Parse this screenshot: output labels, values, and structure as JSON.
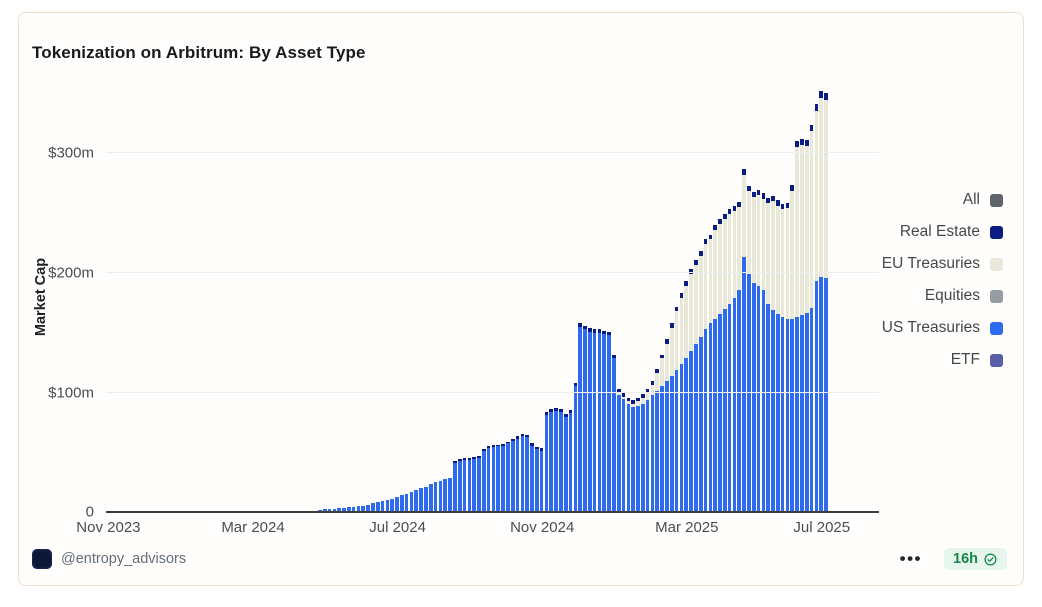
{
  "header": {
    "title": "Tokenization on Arbitrum: By Asset Type"
  },
  "footer": {
    "handle": "@entropy_advisors",
    "more_icon": "•••",
    "time_badge": "16h"
  },
  "chart_data": {
    "type": "bar",
    "stacked": true,
    "title": "Tokenization on Arbitrum: By Asset Type",
    "y_axis_title": "Market Cap",
    "unit": "$m (market cap)",
    "ylim": [
      0,
      366
    ],
    "grid": "horizontal",
    "legend_position": "right",
    "x_range": [
      "Nov 2023",
      "Jul 2025"
    ],
    "x_ticks": [
      {
        "label": "Nov 2023",
        "index": 0
      },
      {
        "label": "Mar 2024",
        "index": 30
      },
      {
        "label": "Jul 2024",
        "index": 60
      },
      {
        "label": "Nov 2024",
        "index": 90
      },
      {
        "label": "Mar 2025",
        "index": 120
      },
      {
        "label": "Jul 2025",
        "index": 148
      }
    ],
    "y_ticks": [
      {
        "label": "0",
        "value": 0
      },
      {
        "label": "$100m",
        "value": 100
      },
      {
        "label": "$200m",
        "value": 200
      },
      {
        "label": "$300m",
        "value": 300
      }
    ],
    "legend": [
      {
        "label": "All",
        "color": "#60646b"
      },
      {
        "label": "Real Estate",
        "color": "#0a1c83"
      },
      {
        "label": "EU Treasuries",
        "color": "#e9e9db"
      },
      {
        "label": "Equities",
        "color": "#979ca3"
      },
      {
        "label": "US Treasuries",
        "color": "#2f6bee"
      },
      {
        "label": "ETF",
        "color": "#5960a8"
      }
    ],
    "series": [
      {
        "name": "US Treasuries",
        "color": "#2f6bee",
        "values": [
          0,
          0,
          0,
          0,
          0,
          0,
          0,
          0,
          0,
          0,
          0,
          0,
          0,
          0,
          0,
          0,
          0,
          0,
          0,
          0,
          0,
          0,
          0,
          0,
          0,
          0,
          0,
          0,
          0,
          0,
          0,
          0,
          0,
          0,
          0,
          0,
          0,
          0,
          0,
          0,
          0,
          1,
          1.5,
          2,
          2.5,
          3,
          3,
          3.5,
          4,
          4.5,
          5,
          5,
          5.5,
          6,
          7,
          8,
          9,
          10,
          11,
          12,
          13.5,
          15,
          16,
          17.5,
          19,
          20.5,
          22,
          24,
          26,
          27,
          28,
          29,
          42,
          43.5,
          44,
          44.5,
          45,
          46,
          52,
          54,
          55,
          55.5,
          56,
          58,
          60,
          62,
          64,
          63,
          56,
          53,
          52,
          82,
          84,
          85,
          84,
          80,
          83,
          106,
          155,
          153,
          151,
          150,
          150,
          149,
          148,
          129,
          98,
          95,
          91,
          88,
          89,
          91,
          94,
          98,
          102,
          106,
          110,
          114,
          119,
          124,
          129,
          135,
          141,
          147,
          153,
          158,
          162,
          166,
          170,
          174,
          179,
          186,
          213,
          199,
          192,
          189,
          186,
          174,
          169,
          166,
          163,
          162,
          162,
          163,
          165,
          167,
          171,
          193,
          197,
          196
        ]
      },
      {
        "name": "EU Treasuries",
        "color": "#e8e8d9",
        "values": [
          0,
          0,
          0,
          0,
          0,
          0,
          0,
          0,
          0,
          0,
          0,
          0,
          0,
          0,
          0,
          0,
          0,
          0,
          0,
          0,
          0,
          0,
          0,
          0,
          0,
          0,
          0,
          0,
          0,
          0,
          0,
          0,
          0,
          0,
          0,
          0,
          0,
          0,
          0,
          0,
          0,
          0,
          0,
          0,
          0,
          0,
          0,
          0,
          0,
          0,
          0,
          0,
          0,
          0,
          0,
          0,
          0,
          0,
          0,
          0,
          0,
          0,
          0,
          0,
          0,
          0,
          0,
          0,
          0,
          0,
          0,
          0,
          0,
          0,
          0,
          0,
          0,
          0,
          0,
          0,
          0,
          0,
          0,
          0,
          0,
          0,
          0,
          0,
          0,
          0,
          0,
          0,
          0,
          0,
          0,
          0,
          0,
          0,
          0,
          0,
          0,
          0,
          0,
          0,
          0,
          0,
          2,
          2,
          2,
          3,
          4,
          5,
          6,
          9,
          15,
          23,
          31,
          40,
          49,
          55,
          60,
          64,
          66,
          67,
          71,
          70,
          74,
          75,
          75,
          75,
          73,
          69,
          69,
          69,
          71,
          76,
          76,
          84,
          91,
          90,
          90,
          92,
          106,
          142,
          142,
          139,
          147,
          142,
          149,
          148
        ]
      },
      {
        "name": "Real Estate",
        "color": "#0a1c83",
        "values": [
          0,
          0,
          0,
          0,
          0,
          0,
          0,
          0,
          0,
          0,
          0,
          0,
          0,
          0,
          0,
          0,
          0,
          0,
          0,
          0,
          0,
          0,
          0,
          0,
          0,
          0,
          0,
          0,
          0,
          0,
          0,
          0,
          0,
          0,
          0,
          0,
          0,
          0,
          0,
          0,
          0,
          0,
          0,
          0,
          0,
          0,
          0,
          0,
          0,
          0,
          0,
          0,
          0,
          0,
          0,
          0,
          0,
          0,
          0,
          0,
          0,
          0,
          0,
          0,
          0,
          0,
          0,
          0,
          0,
          0,
          0,
          0,
          1.5,
          1.5,
          1.5,
          1.5,
          1.5,
          1.5,
          1.5,
          1.5,
          1.5,
          1.5,
          1.5,
          1.5,
          1.5,
          2,
          2,
          2,
          2,
          2,
          2,
          2.5,
          2.5,
          2.5,
          2.5,
          2.5,
          2.5,
          2.5,
          3,
          3,
          3,
          3,
          3,
          3,
          3,
          3,
          3,
          3,
          3,
          3,
          3,
          3,
          3,
          3,
          3,
          3,
          4,
          4,
          4,
          4,
          4,
          4,
          4,
          4,
          4,
          4,
          4,
          4,
          4,
          4,
          4,
          4,
          5,
          4.5,
          4.5,
          4.5,
          4.5,
          4.5,
          4.5,
          4.5,
          4.5,
          4.5,
          5,
          5,
          5,
          5,
          5,
          6,
          6,
          6
        ]
      }
    ]
  }
}
